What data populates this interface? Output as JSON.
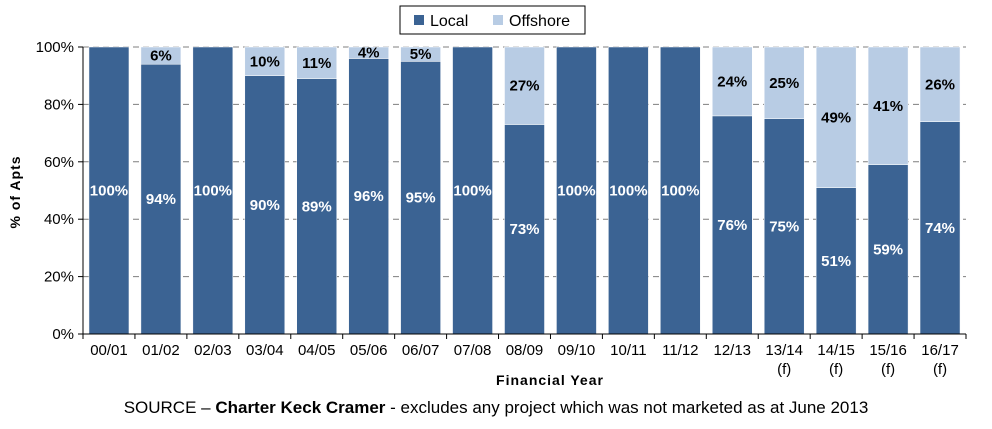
{
  "chart_data": {
    "type": "bar",
    "stacked": true,
    "categories": [
      "00/01",
      "01/02",
      "02/03",
      "03/04",
      "04/05",
      "05/06",
      "06/07",
      "07/08",
      "08/09",
      "09/10",
      "10/11",
      "11/12",
      "12/13",
      "13/14",
      "14/15",
      "15/16",
      "16/17"
    ],
    "category_sublabels": [
      "",
      "",
      "",
      "",
      "",
      "",
      "",
      "",
      "",
      "",
      "",
      "",
      "",
      "(f)",
      "(f)",
      "(f)",
      "(f)"
    ],
    "series": [
      {
        "name": "Local",
        "color": "#3b6393",
        "values": [
          100,
          94,
          100,
          90,
          89,
          96,
          95,
          100,
          73,
          100,
          100,
          100,
          76,
          75,
          51,
          59,
          74
        ],
        "labels": [
          "100%",
          "94%",
          "100%",
          "90%",
          "89%",
          "96%",
          "95%",
          "100%",
          "73%",
          "100%",
          "100%",
          "100%",
          "76%",
          "75%",
          "51%",
          "59%",
          "74%"
        ]
      },
      {
        "name": "Offshore",
        "color": "#b8cce4",
        "values": [
          0,
          6,
          0,
          10,
          11,
          4,
          5,
          0,
          27,
          0,
          0,
          0,
          24,
          25,
          49,
          41,
          26
        ],
        "labels": [
          "",
          "6%",
          "",
          "10%",
          "11%",
          "4%",
          "5%",
          "",
          "27%",
          "",
          "",
          "",
          "24%",
          "25%",
          "49%",
          "41%",
          "26%"
        ]
      }
    ],
    "xlabel": "Financial Year",
    "ylabel": "% of Apts",
    "ylim": [
      0,
      100
    ],
    "yticks": [
      "0%",
      "20%",
      "40%",
      "60%",
      "80%",
      "100%"
    ],
    "grid": "horizontal dashed",
    "legend": "top-center"
  },
  "source": {
    "prefix": "SOURCE – ",
    "bold": "Charter Keck Cramer",
    "suffix": " - excludes any project which was not marketed as at June 2013"
  }
}
